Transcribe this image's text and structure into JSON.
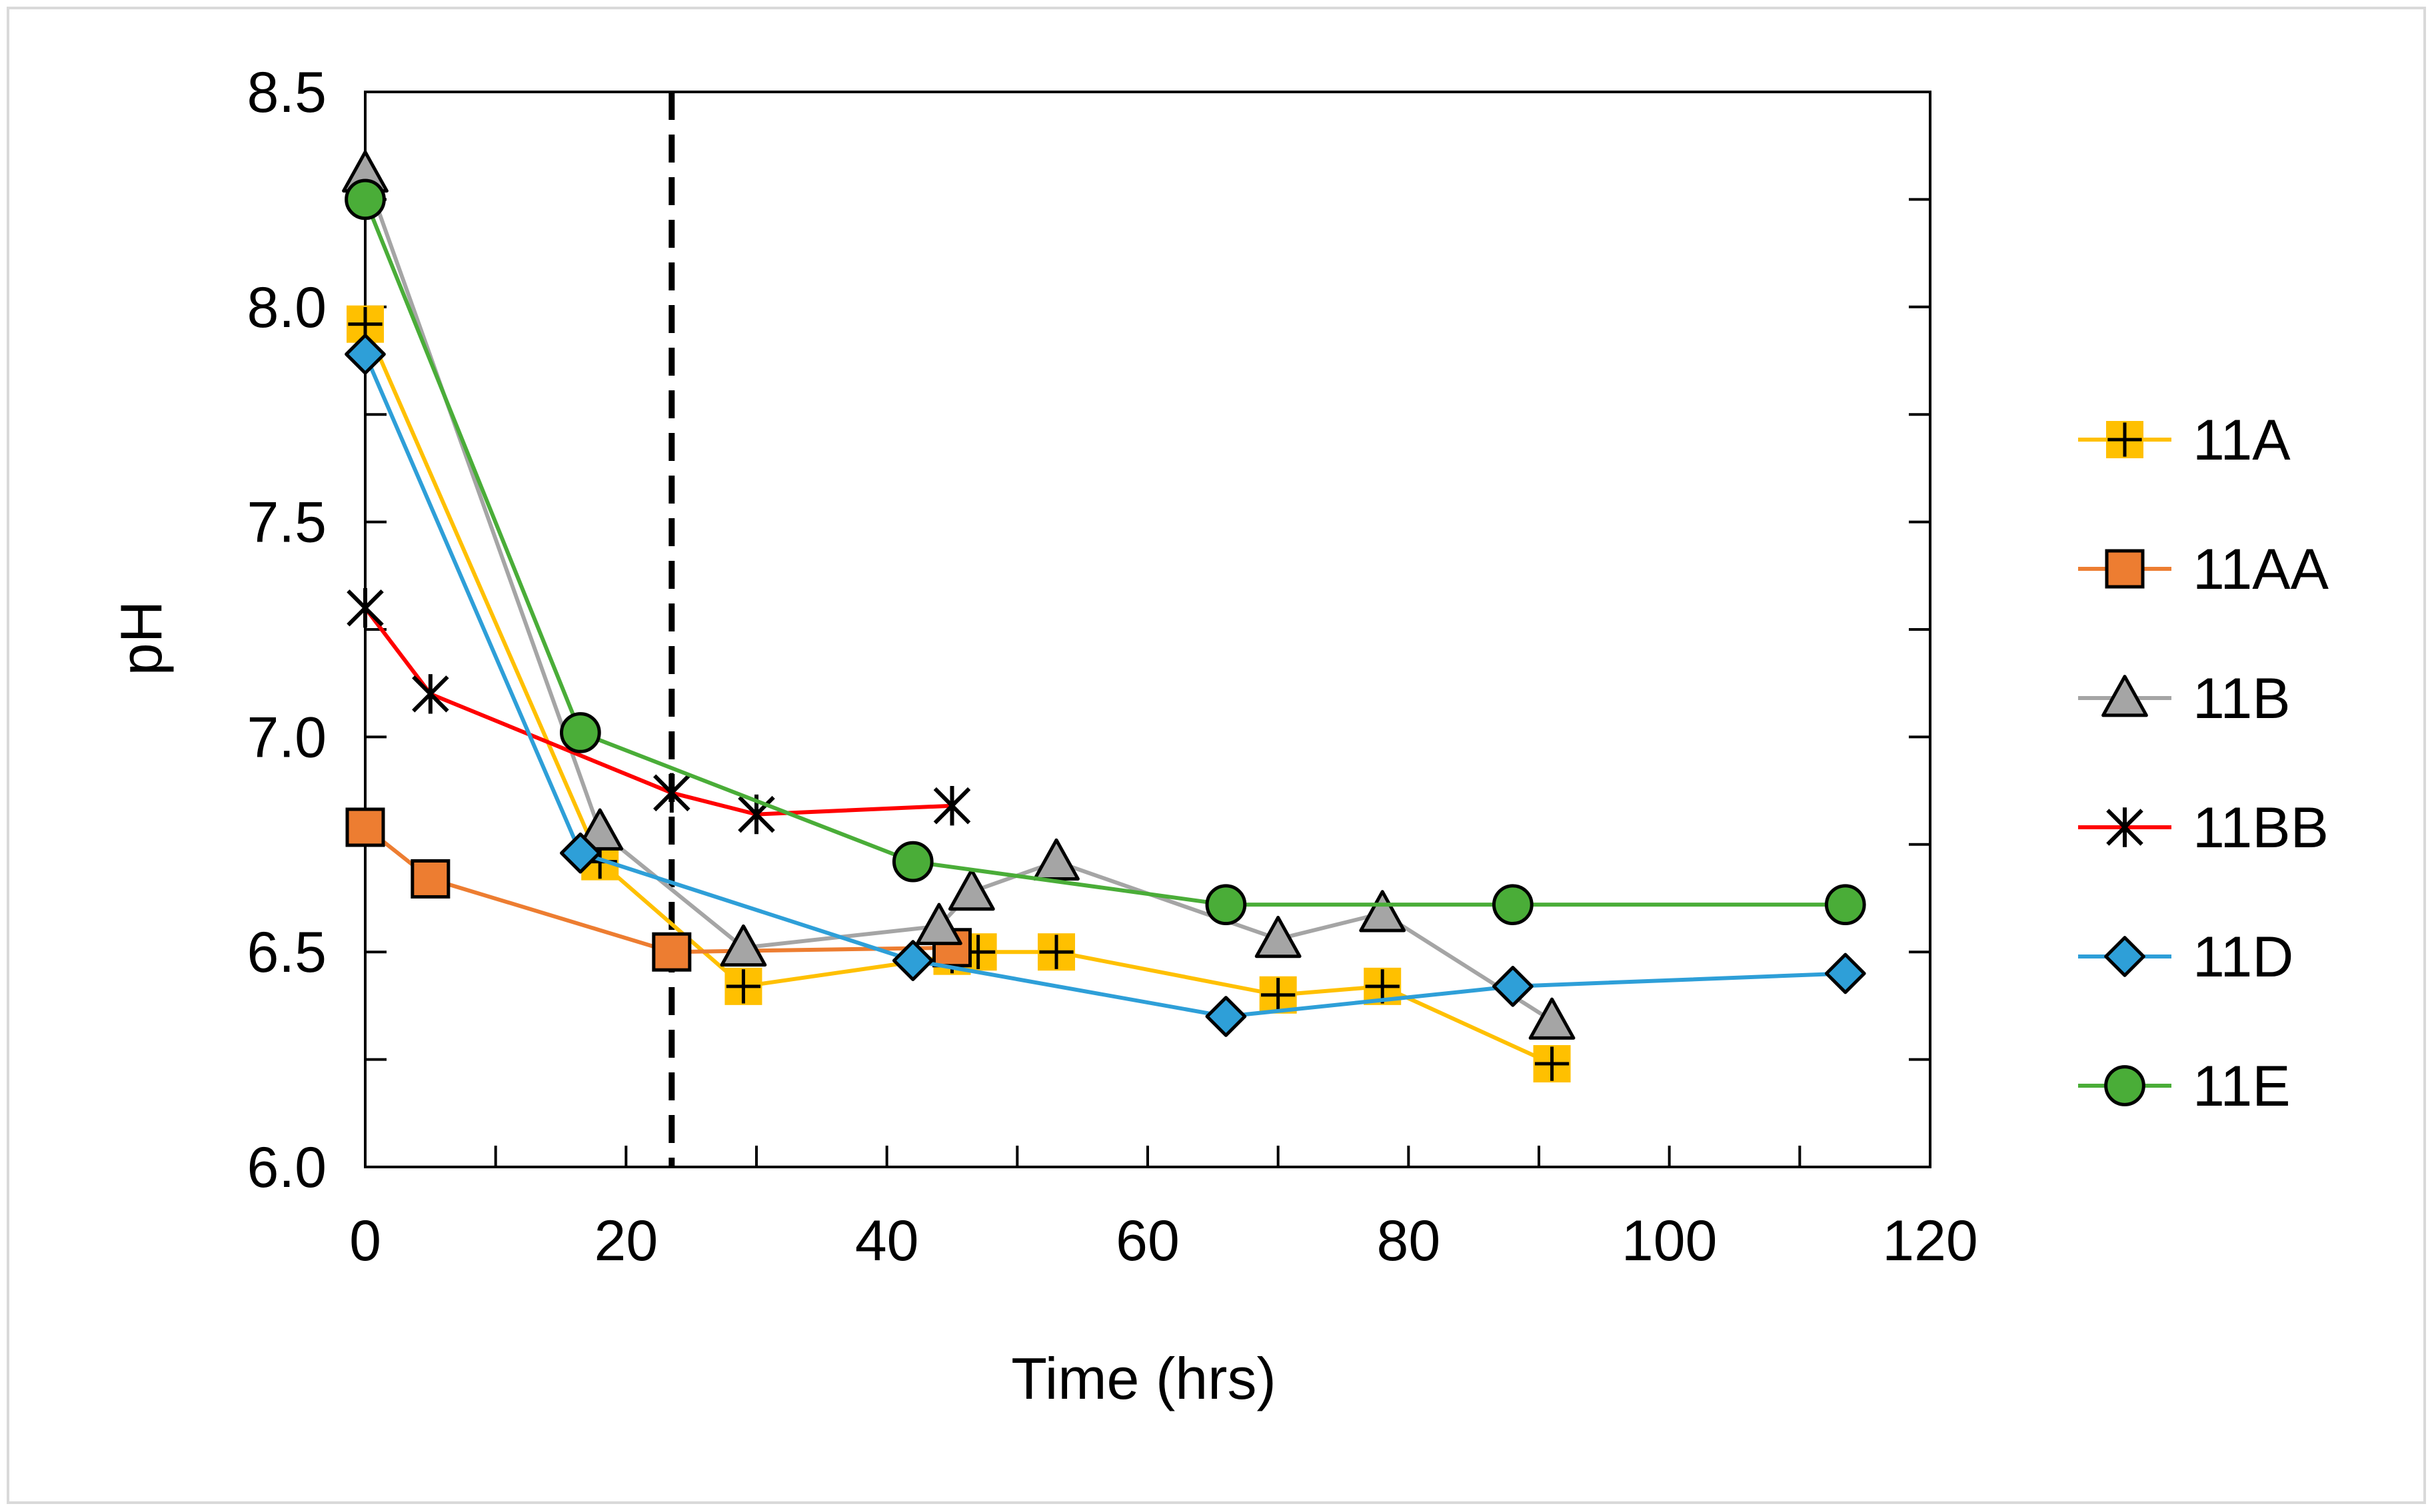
{
  "chart_data": {
    "type": "line",
    "title": "",
    "xlabel": "Time (hrs)",
    "ylabel": "pH",
    "xlim": [
      0,
      120
    ],
    "ylim": [
      6.0,
      8.5
    ],
    "xticks": [
      0,
      20,
      40,
      60,
      80,
      100,
      120
    ],
    "xtick_labels": [
      "0",
      "20",
      "40",
      "60",
      "80",
      "100",
      "120"
    ],
    "yticks": [
      6.0,
      6.5,
      7.0,
      7.5,
      8.0,
      8.5
    ],
    "ytick_labels": [
      "6.0",
      "6.5",
      "7.0",
      "7.5",
      "8.0",
      "8.5"
    ],
    "grid": false,
    "legend_position": "right",
    "vertical_reference_line": {
      "x": 23.5,
      "style": "dashed",
      "color": "#000000"
    },
    "series": [
      {
        "name": "11A",
        "color": "#ffc000",
        "line_color": "#ffc000",
        "marker": "square-plus",
        "x": [
          0,
          18,
          29,
          45,
          47,
          53,
          70,
          78,
          91
        ],
        "y": [
          7.96,
          6.71,
          6.42,
          6.49,
          6.5,
          6.5,
          6.4,
          6.42,
          6.24
        ]
      },
      {
        "name": "11AA",
        "color": "#ed7d31",
        "line_color": "#ed7d31",
        "marker": "square",
        "x": [
          0,
          5,
          23.5,
          45
        ],
        "y": [
          6.79,
          6.67,
          6.5,
          6.51
        ]
      },
      {
        "name": "11B",
        "color": "#a5a5a5",
        "line_color": "#a5a5a5",
        "marker": "triangle",
        "x": [
          0,
          18,
          29,
          44,
          46.5,
          53,
          70,
          78,
          91
        ],
        "y": [
          8.31,
          6.78,
          6.51,
          6.56,
          6.64,
          6.71,
          6.53,
          6.59,
          6.34
        ]
      },
      {
        "name": "11BB",
        "color": "#ff0000",
        "line_color": "#ff0000",
        "marker": "asterisk",
        "x": [
          0,
          5,
          23.5,
          30,
          45
        ],
        "y": [
          7.3,
          7.1,
          6.87,
          6.82,
          6.84
        ]
      },
      {
        "name": "11D",
        "color": "#2e9fd8",
        "line_color": "#2e9fd8",
        "marker": "diamond",
        "x": [
          0,
          16.5,
          42,
          66,
          88,
          113.5
        ],
        "y": [
          7.89,
          6.73,
          6.48,
          6.35,
          6.42,
          6.45
        ]
      },
      {
        "name": "11E",
        "color": "#4aad38",
        "line_color": "#4aad38",
        "marker": "circle",
        "x": [
          0,
          16.5,
          42,
          66,
          88,
          113.5
        ],
        "y": [
          8.25,
          7.01,
          6.71,
          6.61,
          6.61,
          6.61
        ]
      }
    ]
  }
}
